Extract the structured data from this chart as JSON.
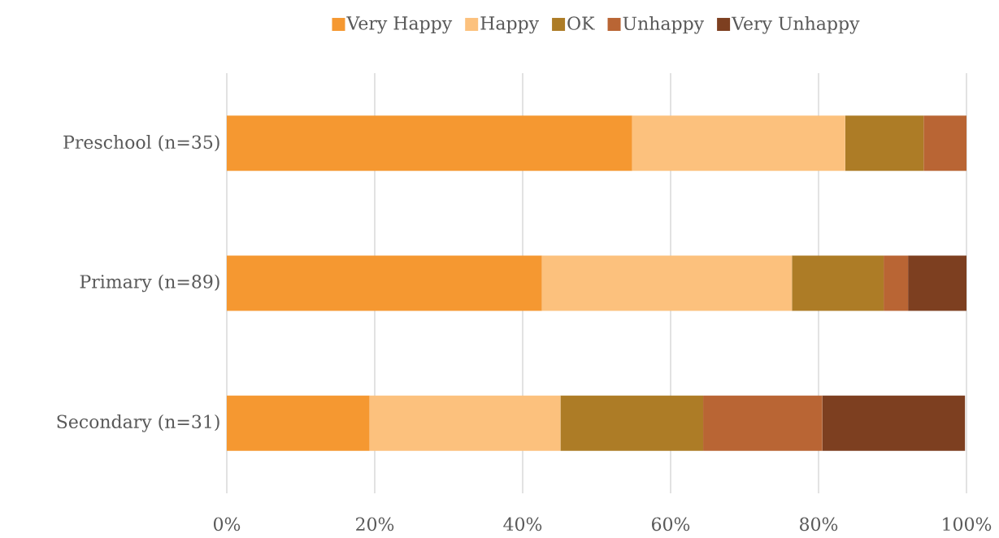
{
  "chart_data": {
    "type": "bar",
    "orientation": "horizontal",
    "stacked": true,
    "categories": [
      "Preschool (n=35)",
      "Primary (n=89)",
      "Secondary (n=31)"
    ],
    "series": [
      {
        "name": "Very Happy",
        "color": "#f59831",
        "values": [
          54.8,
          42.6,
          19.3
        ]
      },
      {
        "name": "Happy",
        "color": "#fcc17d",
        "values": [
          28.8,
          33.8,
          25.8
        ]
      },
      {
        "name": "OK",
        "color": "#ad7c26",
        "values": [
          10.6,
          12.4,
          19.3
        ]
      },
      {
        "name": "Unhappy",
        "color": "#b96534",
        "values": [
          5.8,
          3.3,
          16.1
        ]
      },
      {
        "name": "Very Unhappy",
        "color": "#7d3f20",
        "values": [
          0,
          7.9,
          19.3
        ]
      }
    ],
    "xlim": [
      0,
      100
    ],
    "xticks": [
      {
        "value": 0,
        "label": "0%"
      },
      {
        "value": 20,
        "label": "20%"
      },
      {
        "value": 40,
        "label": "40%"
      },
      {
        "value": 60,
        "label": "60%"
      },
      {
        "value": 80,
        "label": "80%"
      },
      {
        "value": 100,
        "label": "100%"
      }
    ],
    "grid": "x",
    "legend": "top"
  }
}
